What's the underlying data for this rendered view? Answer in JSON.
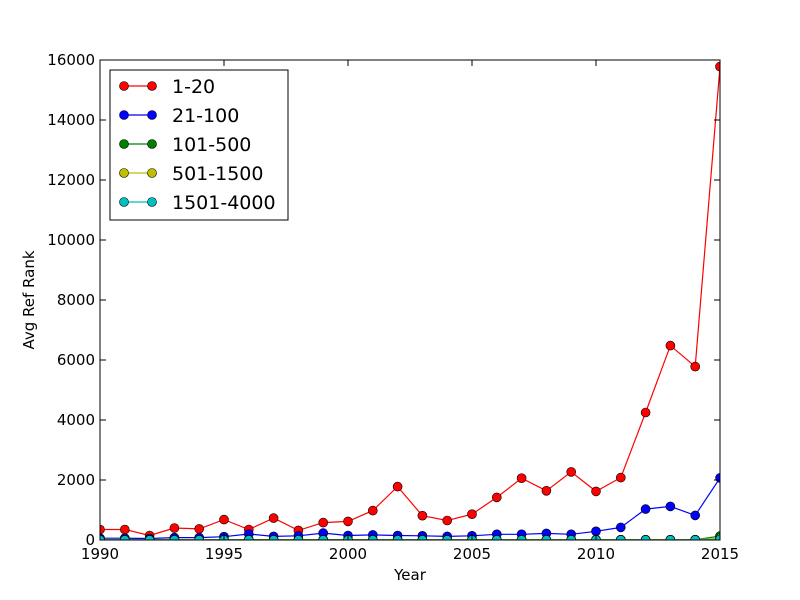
{
  "chart_data": {
    "type": "line",
    "title": "",
    "xlabel": "Year",
    "ylabel": "Avg Ref Rank",
    "xlim": [
      1990,
      2015
    ],
    "ylim": [
      0,
      16000
    ],
    "xticks": [
      "1990",
      "1995",
      "2000",
      "2005",
      "2010",
      "2015"
    ],
    "yticks": [
      "0",
      "2000",
      "4000",
      "6000",
      "8000",
      "10000",
      "12000",
      "14000",
      "16000"
    ],
    "grid": false,
    "legend_position": "top-left",
    "x": [
      1990,
      1991,
      1992,
      1993,
      1994,
      1995,
      1996,
      1997,
      1998,
      1999,
      2000,
      2001,
      2002,
      2003,
      2004,
      2005,
      2006,
      2007,
      2008,
      2009,
      2010,
      2011,
      2012,
      2013,
      2014,
      2015
    ],
    "series": [
      {
        "name": "1-20",
        "color": "#ff0000",
        "values": [
          350,
          350,
          150,
          400,
          370,
          680,
          350,
          730,
          320,
          580,
          620,
          980,
          1780,
          810,
          650,
          860,
          1420,
          2060,
          1640,
          2270,
          1620,
          2080,
          4250,
          6480,
          5780,
          15780
        ]
      },
      {
        "name": "21-100",
        "color": "#0000ff",
        "values": [
          60,
          60,
          50,
          80,
          80,
          110,
          200,
          120,
          140,
          230,
          150,
          170,
          150,
          140,
          120,
          140,
          190,
          190,
          220,
          190,
          290,
          420,
          1030,
          1120,
          820,
          2070
        ]
      },
      {
        "name": "101-500",
        "color": "#008000",
        "values": [
          10,
          10,
          10,
          10,
          10,
          10,
          15,
          10,
          10,
          15,
          15,
          10,
          10,
          10,
          10,
          10,
          10,
          10,
          10,
          10,
          10,
          10,
          10,
          10,
          10,
          130
        ]
      },
      {
        "name": "501-1500",
        "color": "#bfbf00",
        "values": [
          5,
          5,
          5,
          5,
          5,
          5,
          5,
          5,
          5,
          5,
          5,
          5,
          5,
          5,
          5,
          5,
          5,
          5,
          5,
          5,
          5,
          5,
          5,
          5,
          5,
          60
        ]
      },
      {
        "name": "1501-4000",
        "color": "#00bfbf",
        "values": [
          2,
          2,
          2,
          2,
          2,
          2,
          2,
          2,
          2,
          2,
          2,
          2,
          2,
          2,
          2,
          2,
          2,
          2,
          2,
          2,
          2,
          2,
          2,
          2,
          2,
          20
        ]
      }
    ]
  }
}
